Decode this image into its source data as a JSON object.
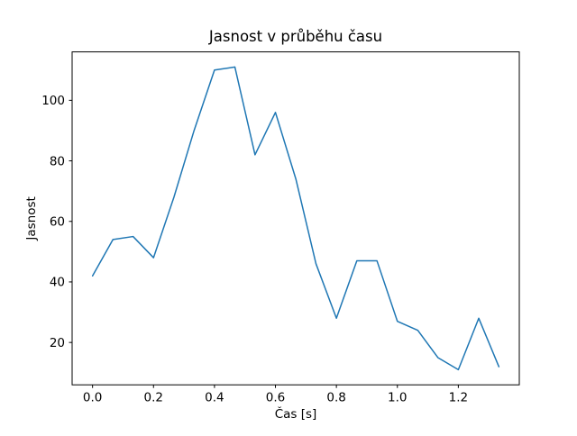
{
  "chart_data": {
    "type": "line",
    "title": "Jasnost v průběhu času",
    "xlabel": "Čas [s]",
    "ylabel": "Jasnost",
    "series": [
      {
        "name": "Jasnost",
        "x": [
          0.0,
          0.067,
          0.133,
          0.2,
          0.267,
          0.333,
          0.4,
          0.467,
          0.533,
          0.6,
          0.667,
          0.733,
          0.8,
          0.867,
          0.933,
          1.0,
          1.067,
          1.133,
          1.2,
          1.267,
          1.333
        ],
        "y": [
          42,
          54,
          55,
          48,
          68,
          90,
          110,
          111,
          82,
          96,
          74,
          46,
          28,
          47,
          47,
          27,
          24,
          15,
          11,
          28,
          12
        ],
        "color": "#1f77b4",
        "line_width": 1.5,
        "markers": false
      }
    ],
    "xlim": [
      -0.067,
      1.4
    ],
    "ylim": [
      6,
      116
    ],
    "x_ticks": {
      "values": [
        0.0,
        0.2,
        0.4,
        0.6,
        0.8,
        1.0,
        1.2
      ],
      "labels": [
        "0.0",
        "0.2",
        "0.4",
        "0.6",
        "0.8",
        "1.0",
        "1.2"
      ]
    },
    "y_ticks": {
      "values": [
        20,
        40,
        60,
        80,
        100
      ],
      "labels": [
        "20",
        "40",
        "60",
        "80",
        "100"
      ]
    },
    "grid": false,
    "legend": null,
    "background_color": "#ffffff",
    "spine_color": "#000000"
  }
}
